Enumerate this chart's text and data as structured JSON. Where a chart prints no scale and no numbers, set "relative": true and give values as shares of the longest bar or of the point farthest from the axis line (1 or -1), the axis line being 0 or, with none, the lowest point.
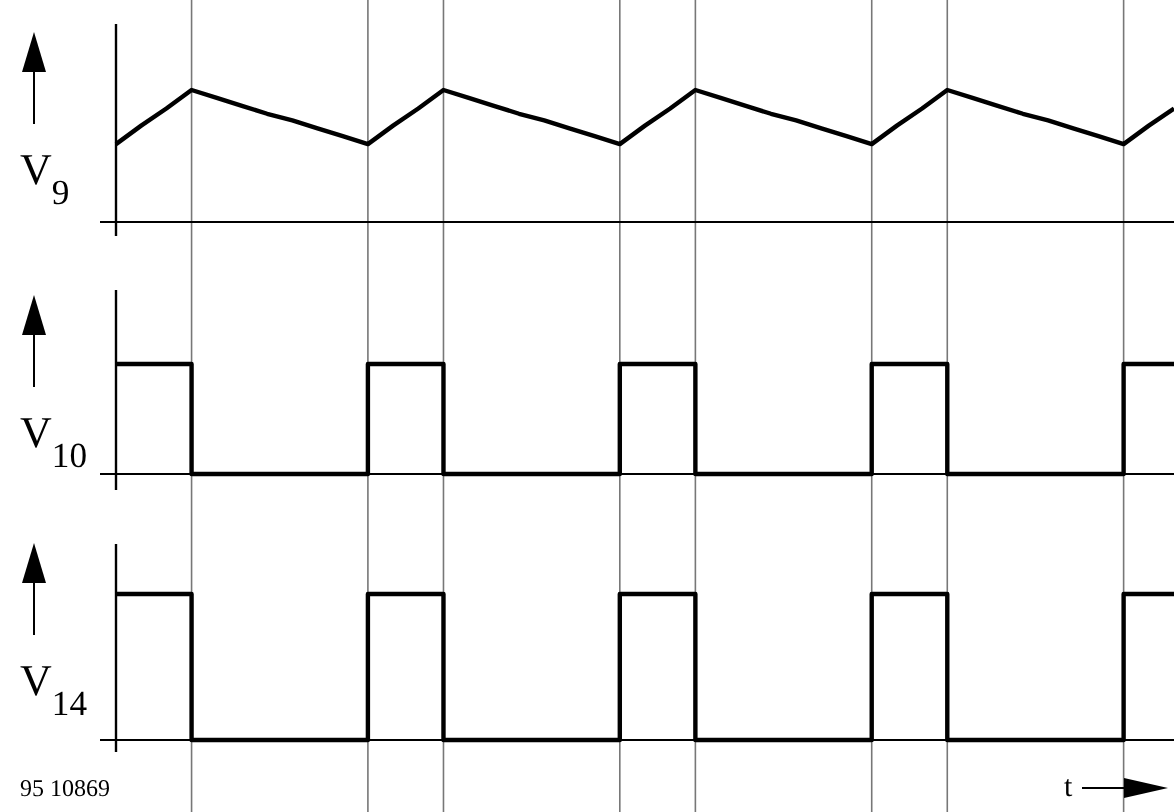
{
  "chart_data": [
    {
      "type": "line",
      "ylabel": "V$_{9}$",
      "relative": true,
      "grid": "x",
      "categories": [
        null,
        null,
        null,
        null,
        null,
        null,
        null,
        null,
        null,
        null,
        null,
        null,
        null,
        null,
        null,
        null,
        null,
        null,
        null,
        null,
        null,
        null,
        null,
        null,
        null,
        null,
        null,
        null,
        null,
        null,
        null,
        null,
        null,
        null,
        null,
        null,
        null,
        null,
        null,
        null,
        null,
        null,
        null
      ],
      "series": [
        {
          "color": "#000000",
          "values": [
            0.59,
            0.73,
            0.86,
            1,
            0.94,
            0.88,
            0.82,
            0.77,
            0.71,
            0.65,
            0.59,
            0.73,
            0.86,
            1,
            0.94,
            0.88,
            0.82,
            0.77,
            0.71,
            0.65,
            0.59,
            0.73,
            0.86,
            1,
            0.94,
            0.88,
            0.82,
            0.77,
            0.71,
            0.65,
            0.59,
            0.73,
            0.86,
            1,
            0.94,
            0.88,
            0.82,
            0.77,
            0.71,
            0.65,
            0.59,
            0.73,
            0.86
          ]
        }
      ]
    },
    {
      "type": "step",
      "ylabel": "V$_{10}$",
      "relative": true,
      "grid": "x",
      "categories": [
        null,
        null,
        null,
        null,
        null,
        null,
        null,
        null,
        null,
        null,
        null,
        null,
        null,
        null,
        null,
        null,
        null,
        null,
        null,
        null,
        null,
        null,
        null,
        null,
        null,
        null,
        null,
        null,
        null,
        null,
        null,
        null,
        null,
        null,
        null,
        null,
        null,
        null,
        null,
        null,
        null,
        null,
        null
      ],
      "series": [
        {
          "color": "#000000",
          "values": [
            1,
            1,
            1,
            0,
            0,
            0,
            0,
            0,
            0,
            0,
            1,
            1,
            1,
            0,
            0,
            0,
            0,
            0,
            0,
            0,
            1,
            1,
            1,
            0,
            0,
            0,
            0,
            0,
            0,
            0,
            1,
            1,
            1,
            0,
            0,
            0,
            0,
            0,
            0,
            0,
            1,
            1,
            1
          ]
        }
      ]
    },
    {
      "type": "step",
      "ylabel": "V$_{14}$",
      "xlabel": "t",
      "annotations": [
        "95 10869"
      ],
      "relative": true,
      "grid": "x",
      "categories": [
        null,
        null,
        null,
        null,
        null,
        null,
        null,
        null,
        null,
        null,
        null,
        null,
        null,
        null,
        null,
        null,
        null,
        null,
        null,
        null,
        null,
        null,
        null,
        null,
        null,
        null,
        null,
        null,
        null,
        null,
        null,
        null,
        null,
        null,
        null,
        null,
        null,
        null,
        null,
        null,
        null,
        null,
        null
      ],
      "series": [
        {
          "color": "#000000",
          "values": [
            1,
            1,
            1,
            0,
            0,
            0,
            0,
            0,
            0,
            0,
            1,
            1,
            1,
            0,
            0,
            0,
            0,
            0,
            0,
            0,
            1,
            1,
            1,
            0,
            0,
            0,
            0,
            0,
            0,
            0,
            1,
            1,
            1,
            0,
            0,
            0,
            0,
            0,
            0,
            0,
            1,
            1,
            1
          ]
        }
      ]
    }
  ]
}
